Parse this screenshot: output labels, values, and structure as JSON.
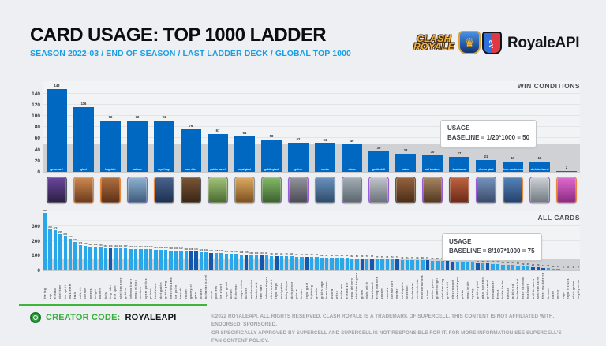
{
  "header": {
    "title": "CARD USAGE: TOP 1000 LADDER",
    "subtitle": "SEASON 2022-03 / END OF SEASON / LAST LADDER DECK / GLOBAL TOP 1000",
    "clash_royale_logo": {
      "line1": "CLASH",
      "line2": "ROYALE",
      "crown": "♛"
    },
    "royaleapi_logo": {
      "shield_text": "API",
      "text": "RoyaleAPI"
    }
  },
  "colors": {
    "accent_blue": "#1a9ee2",
    "win_bar": "#0068c0",
    "all_bar_light": "#2aa7e8",
    "all_bar_dark": "#1357ae",
    "baseline_band": "#cfd1d4",
    "creator_green": "#35b13c"
  },
  "chart_data": [
    {
      "type": "bar",
      "title": "WIN CONDITIONS",
      "annotation_line1": "USAGE",
      "annotation_line2": "BASELINE = 1/20*1000 = 50",
      "baseline_value": 50,
      "ylim": [
        0,
        162
      ],
      "yticks": [
        0,
        20,
        40,
        60,
        80,
        100,
        120,
        140
      ],
      "grid": true,
      "legend_position": "none",
      "categories": [
        "graveyard",
        "giant",
        "hog rider",
        "balloon",
        "royal hogs",
        "ram rider",
        "goblin barrel",
        "royal giant",
        "goblin giant",
        "golem",
        "mortar",
        "x-bow",
        "goblin drill",
        "miner",
        "wall breakers",
        "lava hound",
        "electro giant",
        "three musketeers",
        "skeleton barrel",
        "elixir golem"
      ],
      "values": [
        148,
        116,
        92,
        92,
        91,
        76,
        67,
        64,
        58,
        52,
        51,
        49,
        36,
        33,
        30,
        27,
        21,
        19,
        18,
        2
      ]
    },
    {
      "type": "bar",
      "title": "ALL CARDS",
      "annotation_line1": "USAGE",
      "annotation_line2": "BASELINE = 8/107*1000 = 75",
      "baseline_value": 75,
      "ylim": [
        0,
        400
      ],
      "yticks": [
        0,
        100,
        200,
        300
      ],
      "grid": true,
      "legend_position": "none",
      "highlight_indices": [
        13,
        29,
        30,
        33,
        40,
        43,
        46,
        52,
        63,
        65,
        70,
        76,
        80,
        81,
        86,
        88,
        97,
        98,
        99,
        105
      ],
      "categories": [
        "the log",
        "zap",
        "fireball",
        "skeletons",
        "ice spirit",
        "musketeer",
        "tesla",
        "valkyrie",
        "cannon",
        "arrows",
        "knight",
        "archers",
        "bats",
        "hog rider",
        "fire spirit",
        "skeleton army",
        "goblins",
        "inferno tower",
        "mega minion",
        "minions",
        "spear goblins",
        "poison",
        "tombstone",
        "dart goblin",
        "goblin gang",
        "electro wizard",
        "ice golem",
        "tornado",
        "rocket",
        "graveyard",
        "giant",
        "bowler",
        "barbarian barrel",
        "miner",
        "princess",
        "ice wizard",
        "royal ghost",
        "bandit",
        "fisherman",
        "magic archer",
        "balloon",
        "mother witch",
        "lumberjack",
        "ram rider",
        "inferno dragon",
        "electro spirit",
        "royal hogs",
        "mini pekka",
        "baby dragon",
        "dark prince",
        "prince",
        "hunter",
        "royal giant",
        "lightning",
        "guards",
        "goblin cage",
        "bomb tower",
        "wizard",
        "witch",
        "battle ram",
        "firecracker",
        "royal delivery",
        "skeleton dragons",
        "golem",
        "night witch",
        "lava hound",
        "flying machine",
        "zappies",
        "rascals",
        "cannon cart",
        "mortar",
        "earthquake",
        "snowball",
        "barbarians",
        "minion horde",
        "elite barbarians",
        "x-bow",
        "archer queen",
        "golden knight",
        "skeleton king",
        "goblin drill",
        "electro giant",
        "electro dragon",
        "pekka",
        "mega knight",
        "sparky",
        "goblin giant",
        "giant skeleton",
        "goblin barrel",
        "executioner",
        "freeze",
        "battle healer",
        "furnace",
        "goblin hut",
        "barbarian hut",
        "elixir collector",
        "heal spirit",
        "wall breakers",
        "skeleton barrel",
        "three musketeers",
        "bomber",
        "clone",
        "mirror",
        "rage",
        "royal recruits",
        "elixir golem",
        "mighty miner"
      ],
      "values": [
        390,
        280,
        270,
        245,
        230,
        215,
        190,
        172,
        166,
        162,
        158,
        155,
        152,
        150,
        149,
        148,
        147,
        146,
        145,
        144,
        143,
        142,
        141,
        140,
        138,
        136,
        134,
        132,
        130,
        128,
        126,
        124,
        122,
        120,
        118,
        116,
        114,
        112,
        110,
        108,
        106,
        104,
        102,
        100,
        99,
        98,
        97,
        96,
        95,
        94,
        93,
        92,
        91,
        90,
        89,
        88,
        87,
        86,
        85,
        84,
        83,
        82,
        81,
        80,
        79,
        78,
        77,
        76,
        75,
        74,
        73,
        72,
        71,
        70,
        69,
        68,
        67,
        66,
        65,
        64,
        62,
        60,
        58,
        56,
        54,
        52,
        50,
        48,
        46,
        44,
        42,
        40,
        38,
        35,
        32,
        29,
        26,
        23,
        20,
        17,
        14,
        12,
        10,
        8,
        6,
        4,
        2
      ]
    }
  ],
  "cards": [
    {
      "name": "graveyard",
      "top": "#6a46a0",
      "bottom": "#2a2040",
      "frame": "#555a62"
    },
    {
      "name": "giant",
      "top": "#d08a4e",
      "bottom": "#6b3a1e",
      "frame": "#e8883a"
    },
    {
      "name": "hog rider",
      "top": "#b0703f",
      "bottom": "#5c3018",
      "frame": "#e8883a"
    },
    {
      "name": "balloon",
      "top": "#8fb3d3",
      "bottom": "#3f5a7a",
      "frame": "#9a5ad9"
    },
    {
      "name": "royal hogs",
      "top": "#48648f",
      "bottom": "#1e3050",
      "frame": "#e8883a"
    },
    {
      "name": "ram rider",
      "top": "#7a5636",
      "bottom": "#3a2516",
      "frame": "#555a62"
    },
    {
      "name": "goblin barrel",
      "top": "#a3c47a",
      "bottom": "#4a6a30",
      "frame": "#9a5ad9"
    },
    {
      "name": "royal giant",
      "top": "#e0ab62",
      "bottom": "#7a5020",
      "frame": "#8e9298"
    },
    {
      "name": "goblin giant",
      "top": "#86ba68",
      "bottom": "#3a6030",
      "frame": "#9a5ad9"
    },
    {
      "name": "golem",
      "top": "#94949c",
      "bottom": "#4a4a55",
      "frame": "#9a5ad9"
    },
    {
      "name": "mortar",
      "top": "#6a93bf",
      "bottom": "#2f4a6a",
      "frame": "#8e9298"
    },
    {
      "name": "x-bow",
      "top": "#a3aeb6",
      "bottom": "#5a656d",
      "frame": "#9a5ad9"
    },
    {
      "name": "goblin drill",
      "top": "#c2c6cc",
      "bottom": "#6a7078",
      "frame": "#9a5ad9"
    },
    {
      "name": "miner",
      "top": "#96643f",
      "bottom": "#4a2d18",
      "frame": "#555a62"
    },
    {
      "name": "wall breakers",
      "top": "#a88663",
      "bottom": "#50381f",
      "frame": "#9a5ad9"
    },
    {
      "name": "lava hound",
      "top": "#c06440",
      "bottom": "#6a2a18",
      "frame": "#555a62"
    },
    {
      "name": "electro giant",
      "top": "#7694bf",
      "bottom": "#3a4a68",
      "frame": "#9a5ad9"
    },
    {
      "name": "three musketeers",
      "top": "#5584ba",
      "bottom": "#24406a",
      "frame": "#e8883a"
    },
    {
      "name": "skeleton barrel",
      "top": "#ced2d8",
      "bottom": "#707880",
      "frame": "#9a5ad9"
    },
    {
      "name": "elixir golem",
      "top": "#e06ad0",
      "bottom": "#8a2a80",
      "frame": "#e8883a"
    }
  ],
  "footer": {
    "creator_label": "CREATOR CODE:",
    "creator_code": "ROYALEAPI",
    "disclaimer_line1": "©2022 ROYALEAPI. ALL RIGHTS RESERVED. CLASH ROYALE IS A TRADEMARK OF SUPERCELL. THIS CONTENT IS NOT AFFILIATED WITH, ENDORSED, SPONSORED,",
    "disclaimer_line2": "OR SPECIFICALLY APPROVED BY SUPERCELL AND SUPERCELL IS NOT RESPONSIBLE FOR IT. FOR MORE INFORMATION SEE SUPERCELL'S FAN CONTENT POLICY."
  }
}
